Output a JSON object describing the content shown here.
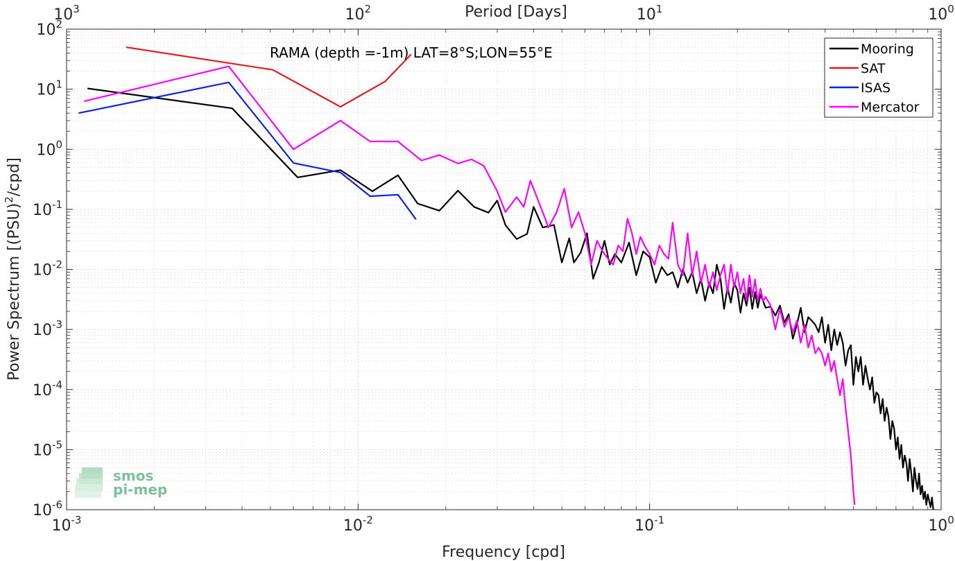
{
  "chart_data": {
    "type": "line",
    "title": "",
    "annotation": "RAMA (depth =-1m) LAT=8°S;LON=55°E",
    "xlabel": "Frequency [cpd]",
    "ylabel": "Power Spectrum [(PSU)",
    "ylabel_sup": "2",
    "ylabel_tail": "/cpd]",
    "top_xlabel": "Period [Days]",
    "xscale": "log",
    "yscale": "log",
    "xlim": [
      0.001,
      1
    ],
    "ylim": [
      1e-06,
      100
    ],
    "grid": true,
    "legend_position": "top-right",
    "x_ticks": [
      {
        "value": 0.001,
        "base": "10",
        "exp": "-3"
      },
      {
        "value": 0.01,
        "base": "10",
        "exp": "-2"
      },
      {
        "value": 0.1,
        "base": "10",
        "exp": "-1"
      },
      {
        "value": 1,
        "base": "10",
        "exp": "0"
      }
    ],
    "y_ticks": [
      {
        "value": 1e-06,
        "base": "10",
        "exp": "-6"
      },
      {
        "value": 1e-05,
        "base": "10",
        "exp": "-5"
      },
      {
        "value": 0.0001,
        "base": "10",
        "exp": "-4"
      },
      {
        "value": 0.001,
        "base": "10",
        "exp": "-3"
      },
      {
        "value": 0.01,
        "base": "10",
        "exp": "-2"
      },
      {
        "value": 0.1,
        "base": "10",
        "exp": "-1"
      },
      {
        "value": 1,
        "base": "10",
        "exp": "0"
      },
      {
        "value": 10,
        "base": "10",
        "exp": "1"
      },
      {
        "value": 100,
        "base": "10",
        "exp": "2"
      }
    ],
    "top_ticks": [
      {
        "value": 0.001,
        "base": "10",
        "exp": "3"
      },
      {
        "value": 0.01,
        "base": "10",
        "exp": "2"
      },
      {
        "value": 0.1,
        "base": "10",
        "exp": "1"
      },
      {
        "value": 1,
        "base": "10",
        "exp": "0"
      }
    ],
    "series": [
      {
        "name": "Mooring",
        "color": "#000000",
        "x": [
          0.00118,
          0.0037,
          0.0062,
          0.0087,
          0.0112,
          0.0137,
          0.016,
          0.019,
          0.022,
          0.025,
          0.028,
          0.03,
          0.032,
          0.035,
          0.038,
          0.04,
          0.043,
          0.047,
          0.05,
          0.053,
          0.055,
          0.058,
          0.061,
          0.064,
          0.067,
          0.07,
          0.073,
          0.076,
          0.08,
          0.085,
          0.09,
          0.095,
          0.1,
          0.105,
          0.11,
          0.115,
          0.12,
          0.125,
          0.13,
          0.135,
          0.14,
          0.145,
          0.15,
          0.155,
          0.16,
          0.165,
          0.17,
          0.175,
          0.18,
          0.185,
          0.19,
          0.195,
          0.2,
          0.205,
          0.21,
          0.215,
          0.22,
          0.225,
          0.23,
          0.235,
          0.24,
          0.245,
          0.25,
          0.26,
          0.27,
          0.28,
          0.29,
          0.3,
          0.31,
          0.32,
          0.33,
          0.34,
          0.35,
          0.36,
          0.37,
          0.38,
          0.39,
          0.4,
          0.41,
          0.42,
          0.43,
          0.44,
          0.45,
          0.46,
          0.47,
          0.48,
          0.49,
          0.5,
          0.51,
          0.52,
          0.53,
          0.54,
          0.55,
          0.56,
          0.57,
          0.58,
          0.59,
          0.6,
          0.61,
          0.62,
          0.63,
          0.64,
          0.65,
          0.66,
          0.67,
          0.68,
          0.69,
          0.7,
          0.71,
          0.72,
          0.73,
          0.74,
          0.75,
          0.76,
          0.77,
          0.78,
          0.79,
          0.8,
          0.81,
          0.82,
          0.83,
          0.84,
          0.85,
          0.86,
          0.87,
          0.88,
          0.89,
          0.9,
          0.91,
          0.92,
          0.93,
          0.94
        ],
        "y": [
          10.3,
          4.8,
          0.34,
          0.45,
          0.2,
          0.37,
          0.125,
          0.095,
          0.205,
          0.11,
          0.088,
          0.14,
          0.055,
          0.032,
          0.039,
          0.11,
          0.05,
          0.055,
          0.013,
          0.033,
          0.013,
          0.019,
          0.04,
          0.007,
          0.013,
          0.03,
          0.012,
          0.018,
          0.013,
          0.028,
          0.008,
          0.02,
          0.016,
          0.006,
          0.011,
          0.008,
          0.009,
          0.005,
          0.01,
          0.006,
          0.009,
          0.004,
          0.007,
          0.003,
          0.006,
          0.004,
          0.012,
          0.007,
          0.0022,
          0.005,
          0.0028,
          0.006,
          0.0045,
          0.0019,
          0.004,
          0.0025,
          0.005,
          0.0022,
          0.0042,
          0.0023,
          0.0038,
          0.003,
          0.0023,
          0.0024,
          0.0017,
          0.0025,
          0.0013,
          0.0018,
          0.0007,
          0.0012,
          0.0023,
          0.0009,
          0.0016,
          0.0014,
          0.0012,
          0.0009,
          0.0016,
          0.0006,
          0.0012,
          0.00045,
          0.001,
          0.00055,
          0.0009,
          0.0006,
          0.00025,
          0.00045,
          0.00055,
          0.00012,
          0.00035,
          0.0002,
          0.00035,
          0.00012,
          0.00025,
          0.00015,
          0.0001,
          0.00016,
          6e-05,
          9e-05,
          8e-05,
          4e-05,
          7e-05,
          3e-05,
          5e-05,
          3.5e-05,
          1.5e-05,
          3e-05,
          2.2e-05,
          1e-05,
          1.6e-05,
          7e-06,
          1.2e-05,
          5e-06,
          8e-06,
          6e-06,
          3e-06,
          7e-06,
          4e-06,
          2e-06,
          5e-06,
          3e-06,
          2.2e-06,
          4e-06,
          1.8e-06,
          2.5e-06,
          1.5e-06,
          2e-06,
          1.2e-06,
          1.8e-06,
          1.4e-06,
          1.1e-06,
          1.6e-06,
          1e-06
        ]
      },
      {
        "name": "SAT",
        "color": "#e41a1c",
        "x": [
          0.0016,
          0.0051,
          0.0087,
          0.0124,
          0.0152
        ],
        "y": [
          50,
          21,
          5.1,
          13.5,
          38
        ]
      },
      {
        "name": "ISAS",
        "color": "#0a23e6",
        "x": [
          0.0011,
          0.0036,
          0.006,
          0.0087,
          0.011,
          0.0137,
          0.0158
        ],
        "y": [
          4.0,
          13.0,
          0.59,
          0.41,
          0.165,
          0.175,
          0.068
        ]
      },
      {
        "name": "Mercator",
        "color": "#ff00ff",
        "x": [
          0.00115,
          0.0036,
          0.006,
          0.0087,
          0.011,
          0.0137,
          0.0165,
          0.019,
          0.022,
          0.0245,
          0.027,
          0.03,
          0.032,
          0.035,
          0.037,
          0.039,
          0.042,
          0.045,
          0.048,
          0.051,
          0.054,
          0.057,
          0.06,
          0.063,
          0.066,
          0.069,
          0.072,
          0.075,
          0.078,
          0.081,
          0.084,
          0.087,
          0.09,
          0.093,
          0.096,
          0.1,
          0.104,
          0.108,
          0.112,
          0.116,
          0.12,
          0.125,
          0.13,
          0.135,
          0.14,
          0.145,
          0.15,
          0.155,
          0.16,
          0.165,
          0.17,
          0.175,
          0.18,
          0.185,
          0.19,
          0.195,
          0.2,
          0.205,
          0.21,
          0.215,
          0.22,
          0.225,
          0.23,
          0.235,
          0.24,
          0.245,
          0.25,
          0.26,
          0.27,
          0.28,
          0.29,
          0.3,
          0.31,
          0.32,
          0.33,
          0.34,
          0.35,
          0.36,
          0.37,
          0.38,
          0.39,
          0.4,
          0.41,
          0.42,
          0.43,
          0.44,
          0.45,
          0.46,
          0.47,
          0.48,
          0.49,
          0.5,
          0.505
        ],
        "y": [
          6.3,
          24,
          1.0,
          3.0,
          1.35,
          1.35,
          0.65,
          0.8,
          0.58,
          0.68,
          0.53,
          0.2,
          0.09,
          0.16,
          0.11,
          0.3,
          0.12,
          0.05,
          0.09,
          0.22,
          0.05,
          0.09,
          0.04,
          0.012,
          0.03,
          0.02,
          0.015,
          0.012,
          0.025,
          0.02,
          0.07,
          0.04,
          0.018,
          0.035,
          0.025,
          0.018,
          0.012,
          0.025,
          0.018,
          0.015,
          0.06,
          0.012,
          0.008,
          0.04,
          0.008,
          0.02,
          0.006,
          0.012,
          0.005,
          0.009,
          0.0045,
          0.008,
          0.012,
          0.004,
          0.012,
          0.005,
          0.009,
          0.004,
          0.007,
          0.003,
          0.008,
          0.0035,
          0.0068,
          0.003,
          0.0048,
          0.003,
          0.0035,
          0.0025,
          0.001,
          0.0022,
          0.0011,
          0.0016,
          0.0009,
          0.0014,
          0.0006,
          0.0012,
          0.0005,
          0.0008,
          0.0004,
          0.0005,
          0.0004,
          0.00025,
          0.0004,
          0.0002,
          0.0003,
          0.00015,
          8e-05,
          0.00015,
          5e-05,
          2e-05,
          8e-06,
          2e-06,
          1.2e-06
        ]
      }
    ]
  },
  "logo": {
    "line1": "smos",
    "line2": "pi-mep"
  }
}
